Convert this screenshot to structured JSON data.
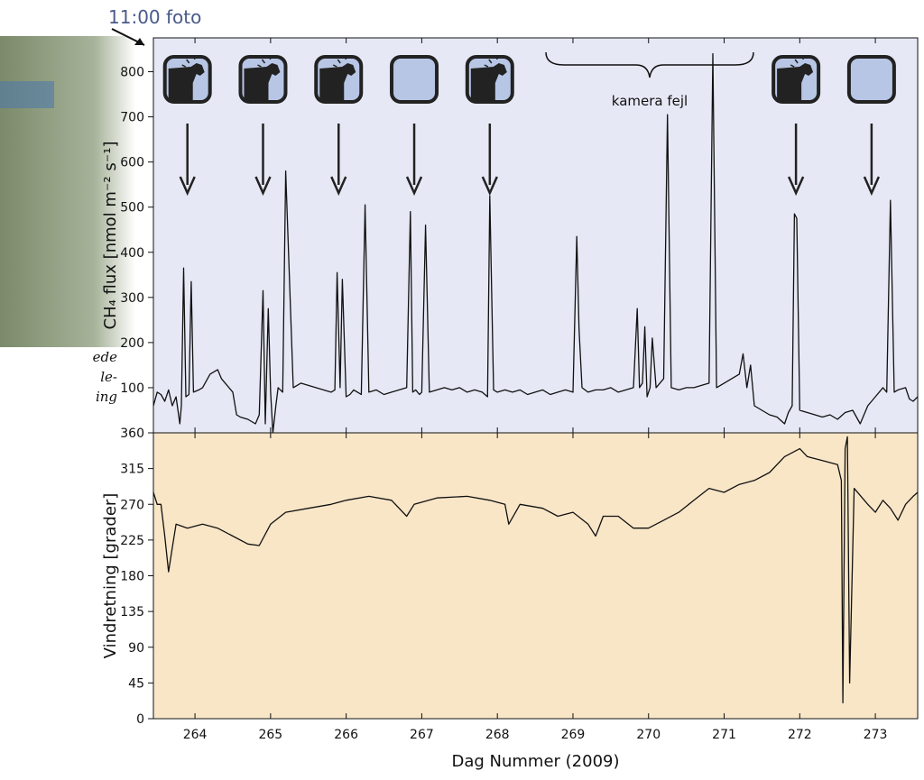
{
  "annotation": "11:00 foto",
  "side_text": [
    "ede",
    "le-",
    "ing"
  ],
  "chart_data": [
    {
      "type": "line",
      "ylabel": "CH₄ flux [nmol m⁻² s⁻¹]",
      "xlim": [
        263.45,
        273.56
      ],
      "xticks": [
        264,
        265,
        266,
        267,
        268,
        269,
        270,
        271,
        272,
        273
      ],
      "ylim": [
        0,
        875
      ],
      "yticks": [
        100,
        200,
        300,
        400,
        500,
        600,
        700,
        800
      ],
      "color": "#111111",
      "background": "#e6e9f5",
      "gap_label": "kamera fejl",
      "photos": {
        "x": [
          263.9,
          264.9,
          265.9,
          266.9,
          267.9,
          271.95,
          272.95
        ],
        "cow": [
          true,
          true,
          true,
          false,
          true,
          true,
          false
        ]
      },
      "x": [
        263.45,
        263.5,
        263.55,
        263.6,
        263.65,
        263.7,
        263.75,
        263.8,
        263.82,
        263.85,
        263.88,
        263.92,
        263.95,
        263.98,
        264.05,
        264.1,
        264.2,
        264.3,
        264.35,
        264.4,
        264.5,
        264.55,
        264.6,
        264.7,
        264.8,
        264.85,
        264.9,
        264.93,
        264.97,
        265.0,
        265.03,
        265.07,
        265.1,
        265.13,
        265.16,
        265.2,
        265.3,
        265.4,
        265.5,
        265.6,
        265.7,
        265.8,
        265.85,
        265.88,
        265.92,
        265.95,
        266.0,
        266.05,
        266.1,
        266.15,
        266.2,
        266.25,
        266.3,
        266.4,
        266.5,
        266.6,
        266.7,
        266.8,
        266.85,
        266.88,
        266.92,
        266.97,
        267.0,
        267.05,
        267.1,
        267.2,
        267.3,
        267.4,
        267.5,
        267.6,
        267.7,
        267.8,
        267.87,
        267.9,
        267.95,
        268.0,
        268.1,
        268.2,
        268.3,
        268.4,
        268.5,
        268.6,
        268.7,
        268.8,
        268.9,
        269.0,
        269.05,
        269.08,
        269.12,
        269.2,
        269.3,
        269.4,
        269.5,
        269.6,
        269.7,
        269.8,
        269.85,
        269.88,
        269.92,
        269.95,
        269.98,
        270.02,
        270.05,
        270.1,
        270.15,
        270.2,
        270.25,
        270.3,
        270.4,
        270.5,
        270.6,
        270.7,
        270.8,
        270.85,
        270.9,
        271.0,
        271.1,
        271.2,
        271.25,
        271.3,
        271.35,
        271.4,
        271.5,
        271.6,
        271.7,
        271.8,
        271.85,
        271.9,
        271.93,
        271.96,
        272.0,
        272.1,
        272.2,
        272.3,
        272.4,
        272.5,
        272.6,
        272.7,
        272.8,
        272.9,
        273.0,
        273.1,
        273.15,
        273.2,
        273.25,
        273.3,
        273.4,
        273.45,
        273.5,
        273.56
      ],
      "values": [
        60,
        90,
        85,
        70,
        95,
        60,
        80,
        20,
        60,
        365,
        80,
        85,
        335,
        90,
        95,
        100,
        130,
        140,
        120,
        110,
        90,
        40,
        35,
        30,
        20,
        40,
        315,
        20,
        275,
        90,
        0,
        60,
        100,
        95,
        90,
        580,
        100,
        110,
        105,
        100,
        95,
        90,
        95,
        355,
        100,
        340,
        80,
        85,
        95,
        90,
        85,
        505,
        90,
        95,
        85,
        90,
        95,
        100,
        490,
        90,
        95,
        85,
        90,
        460,
        90,
        95,
        100,
        95,
        100,
        90,
        95,
        90,
        80,
        525,
        95,
        90,
        95,
        90,
        95,
        85,
        90,
        95,
        85,
        90,
        95,
        90,
        435,
        230,
        100,
        90,
        95,
        95,
        100,
        90,
        95,
        100,
        275,
        100,
        110,
        235,
        80,
        100,
        210,
        100,
        110,
        120,
        705,
        100,
        95,
        100,
        100,
        105,
        110,
        840,
        100,
        110,
        120,
        130,
        175,
        100,
        150,
        60,
        50,
        40,
        35,
        20,
        45,
        60,
        485,
        475,
        50,
        45,
        40,
        35,
        40,
        30,
        45,
        50,
        20,
        60,
        80,
        100,
        90,
        515,
        90,
        95,
        100,
        75,
        70,
        80
      ]
    },
    {
      "type": "line",
      "ylabel": "Vindretning [grader]",
      "xlabel": "Dag Nummer (2009)",
      "xlim": [
        263.45,
        273.56
      ],
      "xticks": [
        264,
        265,
        266,
        267,
        268,
        269,
        270,
        271,
        272,
        273
      ],
      "ylim": [
        0,
        360
      ],
      "yticks": [
        0,
        45,
        90,
        135,
        180,
        225,
        270,
        315,
        360
      ],
      "color": "#111111",
      "background": "#f9e6c7",
      "x": [
        263.45,
        263.5,
        263.55,
        263.6,
        263.65,
        263.7,
        263.75,
        263.9,
        264.1,
        264.3,
        264.5,
        264.7,
        264.85,
        265.0,
        265.2,
        265.5,
        265.8,
        266.0,
        266.3,
        266.6,
        266.8,
        266.9,
        267.2,
        267.6,
        267.9,
        268.1,
        268.15,
        268.3,
        268.6,
        268.8,
        269.0,
        269.2,
        269.3,
        269.4,
        269.6,
        269.8,
        270.0,
        270.2,
        270.4,
        270.6,
        270.8,
        271.0,
        271.2,
        271.4,
        271.6,
        271.8,
        272.0,
        272.1,
        272.3,
        272.5,
        272.55,
        272.57,
        272.6,
        272.63,
        272.66,
        272.72,
        272.9,
        273.0,
        273.1,
        273.2,
        273.3,
        273.4,
        273.5,
        273.56
      ],
      "values": [
        285,
        270,
        270,
        230,
        185,
        215,
        245,
        240,
        245,
        240,
        230,
        220,
        218,
        245,
        260,
        265,
        270,
        275,
        280,
        275,
        255,
        270,
        278,
        280,
        275,
        270,
        245,
        270,
        265,
        255,
        260,
        245,
        230,
        255,
        255,
        240,
        240,
        250,
        260,
        275,
        290,
        285,
        295,
        300,
        310,
        330,
        340,
        330,
        325,
        320,
        300,
        20,
        340,
        355,
        45,
        290,
        270,
        260,
        275,
        265,
        250,
        270,
        280,
        285
      ]
    }
  ]
}
